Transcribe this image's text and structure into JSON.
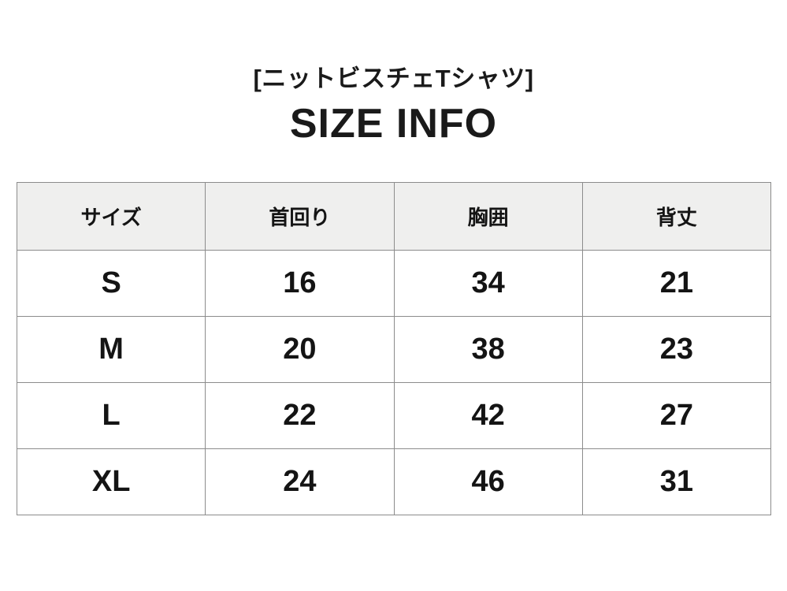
{
  "header": {
    "product_title": "[ニットビスチェTシャツ]",
    "heading": "SIZE INFO"
  },
  "table": {
    "columns": [
      "サイズ",
      "首回り",
      "胸囲",
      "背丈"
    ],
    "rows": [
      {
        "size": "S",
        "values": [
          "16",
          "34",
          "21"
        ]
      },
      {
        "size": "M",
        "values": [
          "20",
          "38",
          "23"
        ]
      },
      {
        "size": "L",
        "values": [
          "22",
          "42",
          "27"
        ]
      },
      {
        "size": "XL",
        "values": [
          "24",
          "46",
          "31"
        ]
      }
    ]
  },
  "colors": {
    "background": "#ffffff",
    "header_row_bg": "#efefee",
    "border": "#8c8c8c",
    "text": "#1a1a1a"
  }
}
